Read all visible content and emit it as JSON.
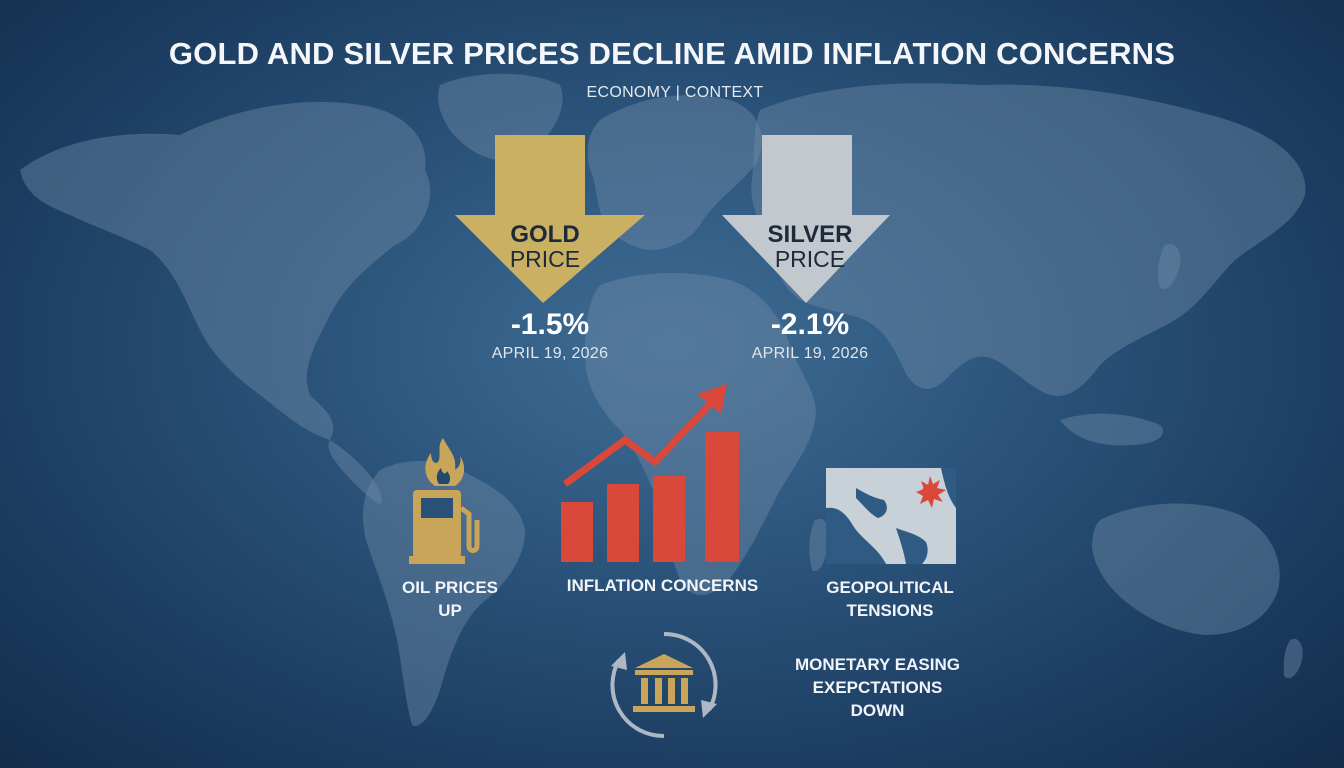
{
  "title": "GOLD AND SILVER PRICES DECLINE AMID INFLATION CONCERNS",
  "subtitle": "ECONOMY  |  CONTEXT",
  "gold": {
    "name": "GOLD",
    "label": "PRICE",
    "change": "-1.5%",
    "date": "APRIL 19, 2026",
    "color": "#c9b062"
  },
  "silver": {
    "name": "SILVER",
    "label": "PRICE",
    "change": "-2.1%",
    "date": "APRIL 19, 2026",
    "color": "#c3c8cf"
  },
  "factors": {
    "oil": {
      "label": "OIL PRICES\nUP",
      "icon": "gas-pump-flame-icon",
      "color": "#c9a55a"
    },
    "inflation": {
      "label": "INFLATION CONCERNS",
      "icon": "rising-bar-chart-icon",
      "color": "#d9483a"
    },
    "geopolitics": {
      "label": "GEOPOLITICAL\nTENSIONS",
      "icon": "middle-east-map-icon",
      "color": "#c8d0d8"
    },
    "monetary": {
      "label": "MONETARY EASING\nEXEPCTATIONS\nDOWN",
      "icon": "bank-cycle-icon",
      "color": "#c9a55a"
    }
  }
}
